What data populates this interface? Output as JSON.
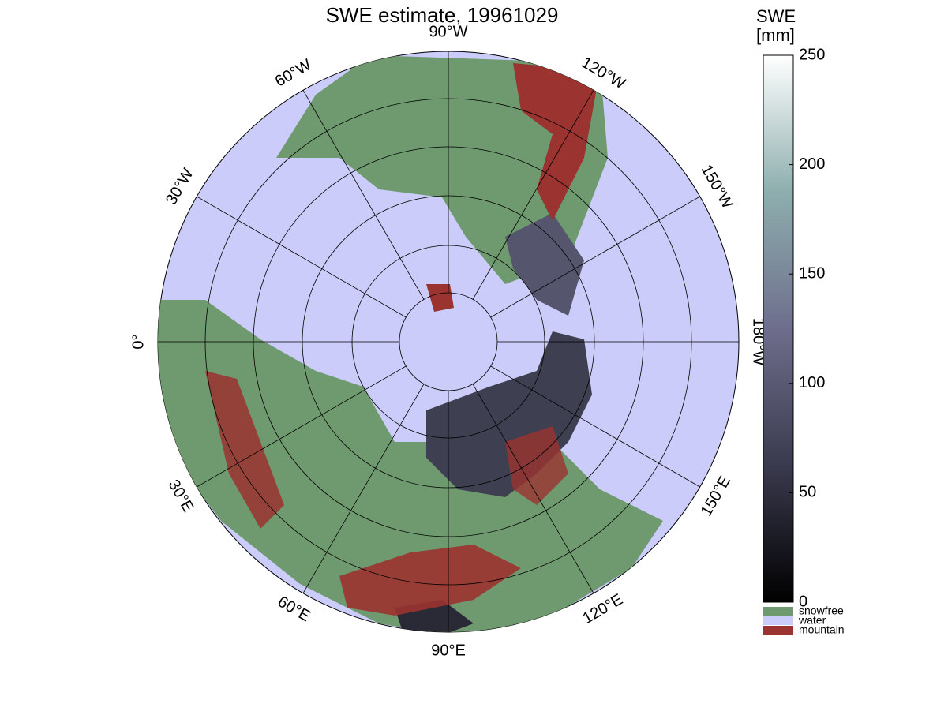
{
  "title": "SWE estimate, 19961029",
  "map": {
    "longitude_labels": [
      "90°W",
      "120°W",
      "150°W",
      "180°W",
      "150°E",
      "120°E",
      "90°E",
      "60°E",
      "30°E",
      "0°",
      "30°W",
      "60°W"
    ],
    "water_color": "#ccccfa"
  },
  "colorbar": {
    "title": "SWE",
    "unit": "[mm]",
    "clim": [
      0,
      250
    ],
    "ticks": [
      0,
      50,
      100,
      150,
      200,
      250
    ],
    "categories": [
      {
        "label": "snowfree",
        "color": "#6f9a6f"
      },
      {
        "label": "water",
        "color": "#ccccfa"
      },
      {
        "label": "mountain",
        "color": "#9b3330"
      }
    ]
  }
}
